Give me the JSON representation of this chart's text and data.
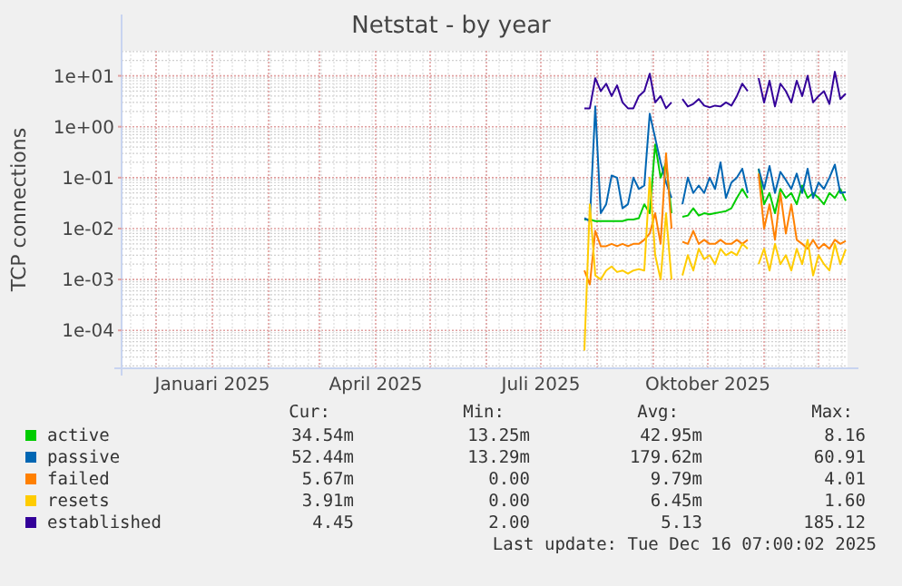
{
  "chart_data": {
    "type": "line",
    "title": "Netstat - by year",
    "ylabel": "TCP connections",
    "log": true,
    "grid": true,
    "legend": "bottom",
    "line_style": "solid",
    "marker": "none",
    "xlim": [
      "2024-11-12",
      "2025-12-17"
    ],
    "xticks": [
      {
        "value": "2025-01-01",
        "label": "Januari 2025"
      },
      {
        "value": "2025-04-01",
        "label": "April 2025"
      },
      {
        "value": "2025-07-01",
        "label": "Juli 2025"
      },
      {
        "value": "2025-10-01",
        "label": "Oktober 2025"
      }
    ],
    "ylim": [
      1.8e-05,
      31
    ],
    "yticks": [
      {
        "value": 0.0001,
        "label": "1e-04"
      },
      {
        "value": 0.001,
        "label": "1e-03"
      },
      {
        "value": 0.01,
        "label": "1e-02"
      },
      {
        "value": 0.1,
        "label": "1e-01"
      },
      {
        "value": 1,
        "label": "1e+00"
      },
      {
        "value": 10,
        "label": "1e+01"
      }
    ],
    "x": [
      "2025-07-25",
      "2025-07-28",
      "2025-07-31",
      "2025-08-03",
      "2025-08-06",
      "2025-08-09",
      "2025-08-12",
      "2025-08-15",
      "2025-08-18",
      "2025-08-21",
      "2025-08-24",
      "2025-08-27",
      "2025-08-30",
      "2025-09-02",
      "2025-09-05",
      "2025-09-08",
      "2025-09-11",
      "2025-09-14",
      "2025-09-17",
      "2025-09-20",
      "2025-09-23",
      "2025-09-26",
      "2025-09-29",
      "2025-10-02",
      "2025-10-05",
      "2025-10-08",
      "2025-10-11",
      "2025-10-14",
      "2025-10-17",
      "2025-10-20",
      "2025-10-23",
      "2025-10-26",
      "2025-10-29",
      "2025-11-01",
      "2025-11-04",
      "2025-11-07",
      "2025-11-10",
      "2025-11-13",
      "2025-11-16",
      "2025-11-19",
      "2025-11-22",
      "2025-11-25",
      "2025-11-28",
      "2025-12-01",
      "2025-12-04",
      "2025-12-07",
      "2025-12-10",
      "2025-12-13",
      "2025-12-16"
    ],
    "series": [
      {
        "name": "active",
        "color": "#00cc00",
        "values": [
          0.015,
          0.015,
          0.014,
          0.014,
          0.014,
          0.014,
          0.014,
          0.014,
          0.015,
          0.015,
          0.016,
          0.03,
          0.02,
          0.45,
          0.1,
          0.2,
          0.02,
          null,
          0.017,
          0.018,
          0.025,
          0.018,
          0.02,
          0.019,
          0.02,
          0.021,
          0.022,
          0.025,
          0.04,
          0.06,
          0.04,
          null,
          0.15,
          0.03,
          0.05,
          0.02,
          0.06,
          0.04,
          0.05,
          0.03,
          0.07,
          0.04,
          0.05,
          0.04,
          0.03,
          0.05,
          0.04,
          0.06,
          0.035
        ]
      },
      {
        "name": "passive",
        "color": "#0066b3",
        "values": [
          0.016,
          0.014,
          2.5,
          0.02,
          0.03,
          0.11,
          0.1,
          0.025,
          0.03,
          0.1,
          0.06,
          0.07,
          1.8,
          0.6,
          0.2,
          0.08,
          0.04,
          null,
          0.03,
          0.1,
          0.05,
          0.07,
          0.05,
          0.1,
          0.06,
          0.2,
          0.04,
          0.08,
          0.1,
          0.15,
          0.05,
          null,
          0.15,
          0.06,
          0.17,
          0.05,
          0.13,
          0.09,
          0.06,
          0.12,
          0.05,
          0.15,
          0.04,
          0.08,
          0.06,
          0.1,
          0.18,
          0.05,
          0.052
        ]
      },
      {
        "name": "failed",
        "color": "#ff8000",
        "values": [
          0.0015,
          0.0008,
          0.009,
          0.0045,
          0.0045,
          0.005,
          0.0045,
          0.005,
          0.0045,
          0.005,
          0.005,
          0.006,
          0.008,
          0.02,
          0.005,
          0.3,
          0.01,
          null,
          0.0055,
          0.005,
          0.009,
          0.005,
          0.006,
          0.005,
          0.005,
          0.006,
          0.005,
          0.005,
          0.006,
          0.005,
          0.006,
          null,
          0.12,
          0.01,
          0.03,
          0.006,
          0.05,
          0.008,
          0.03,
          0.006,
          0.005,
          0.004,
          0.006,
          0.004,
          0.005,
          0.004,
          0.006,
          0.005,
          0.0057
        ]
      },
      {
        "name": "resets",
        "color": "#ffcc00",
        "values": [
          4e-05,
          0.03,
          0.0012,
          0.001,
          0.0015,
          0.0018,
          0.0014,
          0.0015,
          0.0013,
          0.0015,
          0.0016,
          0.0015,
          0.1,
          0.003,
          0.001,
          0.02,
          0.001,
          null,
          0.0012,
          0.003,
          0.0015,
          0.004,
          0.0025,
          0.003,
          0.002,
          0.004,
          0.003,
          0.0035,
          0.003,
          0.005,
          0.004,
          null,
          0.002,
          0.004,
          0.0015,
          0.005,
          0.002,
          0.003,
          0.0015,
          0.004,
          0.002,
          0.006,
          0.0012,
          0.003,
          0.002,
          0.0015,
          0.005,
          0.002,
          0.0039
        ]
      },
      {
        "name": "established",
        "color": "#330099",
        "values": [
          2.3,
          2.3,
          9,
          5,
          7,
          4,
          6.5,
          3,
          2.3,
          2.3,
          4,
          5,
          11,
          3,
          4,
          2.3,
          3,
          null,
          3.5,
          2.5,
          2.8,
          3.5,
          2.6,
          2.4,
          2.6,
          2.5,
          3,
          2.6,
          4,
          7,
          5,
          null,
          9,
          3,
          8,
          2.5,
          7,
          5,
          3,
          8,
          4,
          10,
          3,
          4,
          5,
          2.8,
          12,
          3.5,
          4.45
        ]
      }
    ],
    "annotations": [
      "Cur:",
      "Min:",
      "Avg:",
      "Max:",
      "34.54m",
      "13.25m",
      "42.95m",
      "8.16",
      "52.44m",
      "13.29m",
      "179.62m",
      "60.91",
      "5.67m",
      "0.00",
      "9.79m",
      "4.01",
      "3.91m",
      "0.00",
      "6.45m",
      "1.60",
      "4.45",
      "2.00",
      "5.13",
      "185.12",
      "Last update: Tue Dec 16 07:00:02 2025"
    ]
  }
}
